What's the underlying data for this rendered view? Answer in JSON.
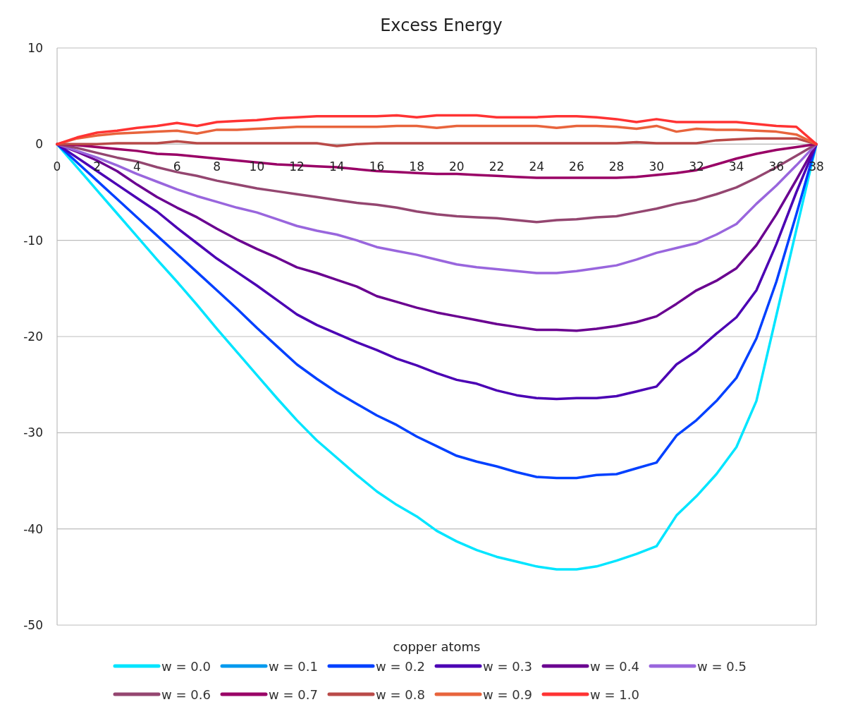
{
  "chart_data": {
    "type": "line",
    "title": "Excess Energy",
    "xlabel": "copper atoms",
    "x": [
      0,
      1,
      2,
      3,
      4,
      5,
      6,
      7,
      8,
      9,
      10,
      11,
      12,
      13,
      14,
      15,
      16,
      17,
      18,
      19,
      20,
      21,
      22,
      23,
      24,
      25,
      26,
      27,
      28,
      29,
      30,
      31,
      32,
      33,
      34,
      35,
      36,
      37,
      38
    ],
    "xlim": [
      0,
      38
    ],
    "xticks": [
      0,
      2,
      4,
      6,
      8,
      10,
      12,
      14,
      16,
      18,
      20,
      22,
      24,
      26,
      28,
      30,
      32,
      34,
      36,
      38
    ],
    "ylim": [
      -50,
      10
    ],
    "yticks": [
      -50,
      -40,
      -30,
      -20,
      -10,
      0,
      10
    ],
    "grid": "y",
    "legend": "bottom",
    "marker": "none",
    "line_style": "solid",
    "series": [
      {
        "name": "w = 0.0",
        "color": "#00e5ff",
        "values": [
          0,
          -2.4,
          -4.8,
          -7.2,
          -9.6,
          -12,
          -14.3,
          -16.7,
          -19.2,
          -21.6,
          -24,
          -26.4,
          -28.7,
          -30.8,
          -32.6,
          -34.4,
          -36.1,
          -37.5,
          -38.7,
          -40.2,
          -41.3,
          -42.2,
          -42.9,
          -43.4,
          -43.9,
          -44.2,
          -44.2,
          -43.9,
          -43.3,
          -42.6,
          -41.8,
          -38.6,
          -36.6,
          -34.3,
          -31.5,
          -26.7,
          -17.8,
          -8.9,
          0
        ]
      },
      {
        "name": "w = 0.1",
        "color": "#0099ee",
        "values": [
          null,
          null,
          null,
          null,
          null,
          null,
          null,
          null,
          null,
          null,
          null,
          null,
          null,
          null,
          null,
          null,
          null,
          null,
          null,
          null,
          null,
          null,
          null,
          null,
          null,
          null,
          null,
          null,
          null,
          null,
          null,
          null,
          null,
          null,
          null,
          null,
          null,
          null,
          null
        ]
      },
      {
        "name": "w = 0.2",
        "color": "#0040ff",
        "values": [
          0,
          -1.9,
          -3.8,
          -5.7,
          -7.6,
          -9.5,
          -11.4,
          -13.3,
          -15.2,
          -17.1,
          -19.1,
          -21,
          -22.9,
          -24.4,
          -25.8,
          -27,
          -28.2,
          -29.2,
          -30.4,
          -31.4,
          -32.4,
          -33,
          -33.5,
          -34.1,
          -34.6,
          -34.7,
          -34.7,
          -34.4,
          -34.3,
          -33.7,
          -33.1,
          -30.3,
          -28.7,
          -26.7,
          -24.3,
          -20.2,
          -14.3,
          -7.3,
          0
        ]
      },
      {
        "name": "w = 0.3",
        "color": "#4b00b4",
        "values": [
          0,
          -1.4,
          -2.8,
          -4.2,
          -5.6,
          -7,
          -8.7,
          -10.3,
          -11.9,
          -13.3,
          -14.7,
          -16.2,
          -17.7,
          -18.8,
          -19.7,
          -20.6,
          -21.4,
          -22.3,
          -23,
          -23.8,
          -24.5,
          -24.9,
          -25.6,
          -26.1,
          -26.4,
          -26.5,
          -26.4,
          -26.4,
          -26.2,
          -25.7,
          -25.2,
          -22.9,
          -21.5,
          -19.7,
          -18,
          -15.2,
          -10.4,
          -5,
          0
        ]
      },
      {
        "name": "w = 0.4",
        "color": "#6a0090",
        "values": [
          0,
          -0.8,
          -1.7,
          -2.8,
          -4.2,
          -5.5,
          -6.6,
          -7.6,
          -8.8,
          -9.9,
          -10.9,
          -11.8,
          -12.8,
          -13.4,
          -14.1,
          -14.8,
          -15.8,
          -16.4,
          -17,
          -17.5,
          -17.9,
          -18.3,
          -18.7,
          -19,
          -19.3,
          -19.3,
          -19.4,
          -19.2,
          -18.9,
          -18.5,
          -17.9,
          -16.6,
          -15.2,
          -14.2,
          -12.9,
          -10.5,
          -7.3,
          -3.7,
          0
        ]
      },
      {
        "name": "w = 0.5",
        "color": "#9966dd",
        "values": [
          0,
          -0.7,
          -1.4,
          -2.2,
          -3.1,
          -3.9,
          -4.7,
          -5.4,
          -6,
          -6.6,
          -7.1,
          -7.8,
          -8.5,
          -9,
          -9.4,
          -10,
          -10.7,
          -11.1,
          -11.5,
          -12,
          -12.5,
          -12.8,
          -13,
          -13.2,
          -13.4,
          -13.4,
          -13.2,
          -12.9,
          -12.6,
          -12,
          -11.3,
          -10.8,
          -10.3,
          -9.4,
          -8.3,
          -6.2,
          -4.3,
          -2.2,
          0
        ]
      },
      {
        "name": "w = 0.6",
        "color": "#944670",
        "values": [
          0,
          -0.4,
          -0.9,
          -1.4,
          -1.8,
          -2.4,
          -2.9,
          -3.3,
          -3.8,
          -4.2,
          -4.6,
          -4.9,
          -5.2,
          -5.5,
          -5.8,
          -6.1,
          -6.3,
          -6.6,
          -7,
          -7.3,
          -7.5,
          -7.6,
          -7.7,
          -7.9,
          -8.1,
          -7.9,
          -7.8,
          -7.6,
          -7.5,
          -7.1,
          -6.7,
          -6.2,
          -5.8,
          -5.2,
          -4.5,
          -3.5,
          -2.4,
          -1.2,
          0
        ]
      },
      {
        "name": "w = 0.7",
        "color": "#990066",
        "values": [
          0,
          -0.1,
          -0.3,
          -0.5,
          -0.7,
          -1,
          -1.1,
          -1.3,
          -1.5,
          -1.7,
          -1.9,
          -2.1,
          -2.2,
          -2.3,
          -2.4,
          -2.6,
          -2.8,
          -2.9,
          -3,
          -3.1,
          -3.1,
          -3.2,
          -3.3,
          -3.4,
          -3.5,
          -3.5,
          -3.5,
          -3.5,
          -3.5,
          -3.4,
          -3.2,
          -3,
          -2.7,
          -2.1,
          -1.5,
          -1,
          -0.6,
          -0.3,
          0
        ]
      },
      {
        "name": "w = 0.8",
        "color": "#b94a48",
        "values": [
          0,
          0,
          0,
          0.1,
          0.1,
          0.1,
          0.3,
          0.1,
          0.1,
          0.1,
          0.1,
          0.1,
          0.1,
          0.1,
          -0.2,
          0,
          0.1,
          0.1,
          0.1,
          0.1,
          0.1,
          0.1,
          0.1,
          0.1,
          0.1,
          0.1,
          0.1,
          0.1,
          0.1,
          0.2,
          0.1,
          0.1,
          0.1,
          0.4,
          0.5,
          0.6,
          0.6,
          0.6,
          0
        ]
      },
      {
        "name": "w = 0.9",
        "color": "#e8643c",
        "values": [
          0,
          0.6,
          0.9,
          1.1,
          1.2,
          1.3,
          1.4,
          1.1,
          1.5,
          1.5,
          1.6,
          1.7,
          1.8,
          1.8,
          1.8,
          1.8,
          1.8,
          1.9,
          1.9,
          1.7,
          1.9,
          1.9,
          1.9,
          1.9,
          1.9,
          1.7,
          1.9,
          1.9,
          1.8,
          1.6,
          1.9,
          1.3,
          1.6,
          1.5,
          1.5,
          1.4,
          1.3,
          1,
          0
        ]
      },
      {
        "name": "w = 1.0",
        "color": "#ff3333",
        "values": [
          0,
          0.7,
          1.2,
          1.4,
          1.7,
          1.9,
          2.2,
          1.9,
          2.3,
          2.4,
          2.5,
          2.7,
          2.8,
          2.9,
          2.9,
          2.9,
          2.9,
          3,
          2.8,
          3,
          3,
          3,
          2.8,
          2.8,
          2.8,
          2.9,
          2.9,
          2.8,
          2.6,
          2.3,
          2.6,
          2.3,
          2.3,
          2.3,
          2.3,
          2.1,
          1.9,
          1.8,
          0
        ]
      }
    ]
  }
}
